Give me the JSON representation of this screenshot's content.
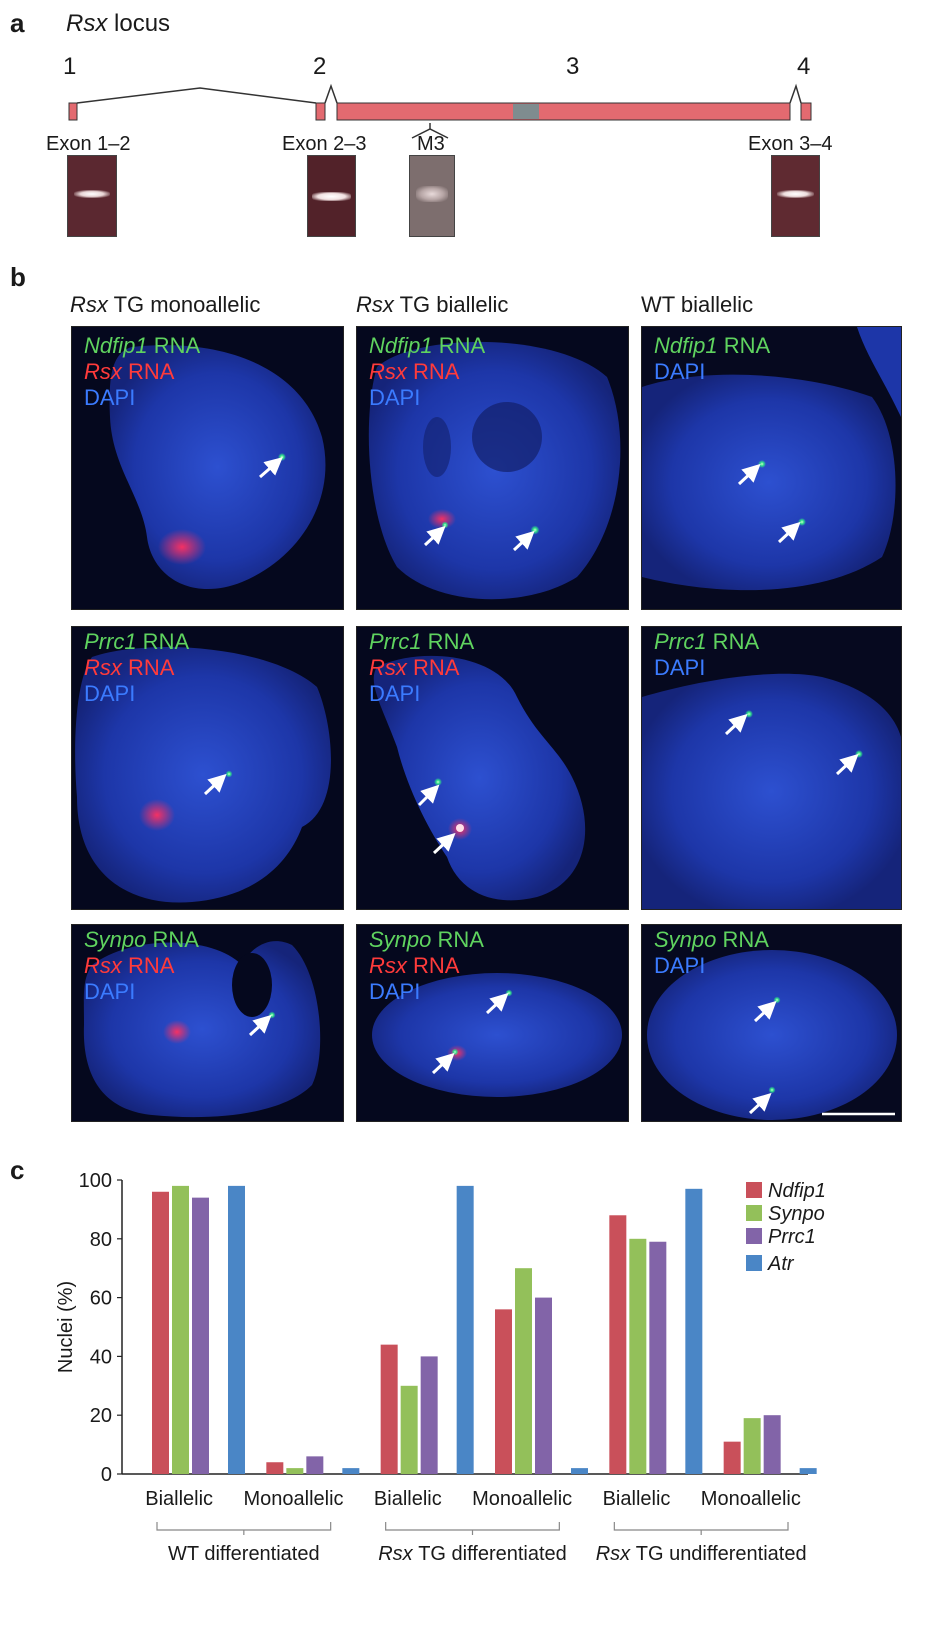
{
  "panel_a": {
    "label": "a",
    "title_italic": "Rsx",
    "title_rest": " locus",
    "exon_numbers": [
      "1",
      "2",
      "3",
      "4"
    ],
    "gel_labels": [
      "Exon 1–2",
      "Exon 2–3",
      "M3",
      "Exon 3–4"
    ]
  },
  "panel_b": {
    "label": "b",
    "columns": [
      {
        "italic": "Rsx",
        "rest": " TG monoallelic"
      },
      {
        "italic": "Rsx",
        "rest": " TG biallelic"
      },
      {
        "italic": "",
        "rest": "WT biallelic"
      }
    ],
    "rows": [
      {
        "gene": "Ndfip1"
      },
      {
        "gene": "Prrc1"
      },
      {
        "gene": "Synpo"
      }
    ],
    "rna_word": " RNA",
    "rsx_word": "Rsx",
    "dapi_word": "DAPI"
  },
  "panel_c": {
    "label": "c"
  },
  "chart_data": {
    "type": "bar",
    "ylabel": "Nuclei (%)",
    "xlabel": "",
    "ylim": [
      0,
      100
    ],
    "yticks": [
      0,
      20,
      40,
      60,
      80,
      100
    ],
    "categories": [
      "Biallelic",
      "Monoallelic",
      "Biallelic",
      "Monoallelic",
      "Biallelic",
      "Monoallelic"
    ],
    "groups": [
      "WT differentiated",
      "TG differentiated",
      "TG undifferentiated"
    ],
    "group_prefix_italic": [
      "",
      "Rsx",
      "Rsx"
    ],
    "series": [
      {
        "name": "Ndfip1",
        "color": "#c9505a",
        "values": [
          96,
          4,
          44,
          56,
          88,
          11
        ]
      },
      {
        "name": "Synpo",
        "color": "#93c05a",
        "values": [
          98,
          2,
          30,
          70,
          80,
          19
        ]
      },
      {
        "name": "Prrc1",
        "color": "#8264a8",
        "values": [
          94,
          6,
          40,
          60,
          79,
          20
        ]
      },
      {
        "name": "Atr",
        "color": "#4a86c6",
        "values": [
          98,
          2,
          98,
          2,
          97,
          2
        ]
      }
    ],
    "legend": "top-right",
    "grid": false
  }
}
